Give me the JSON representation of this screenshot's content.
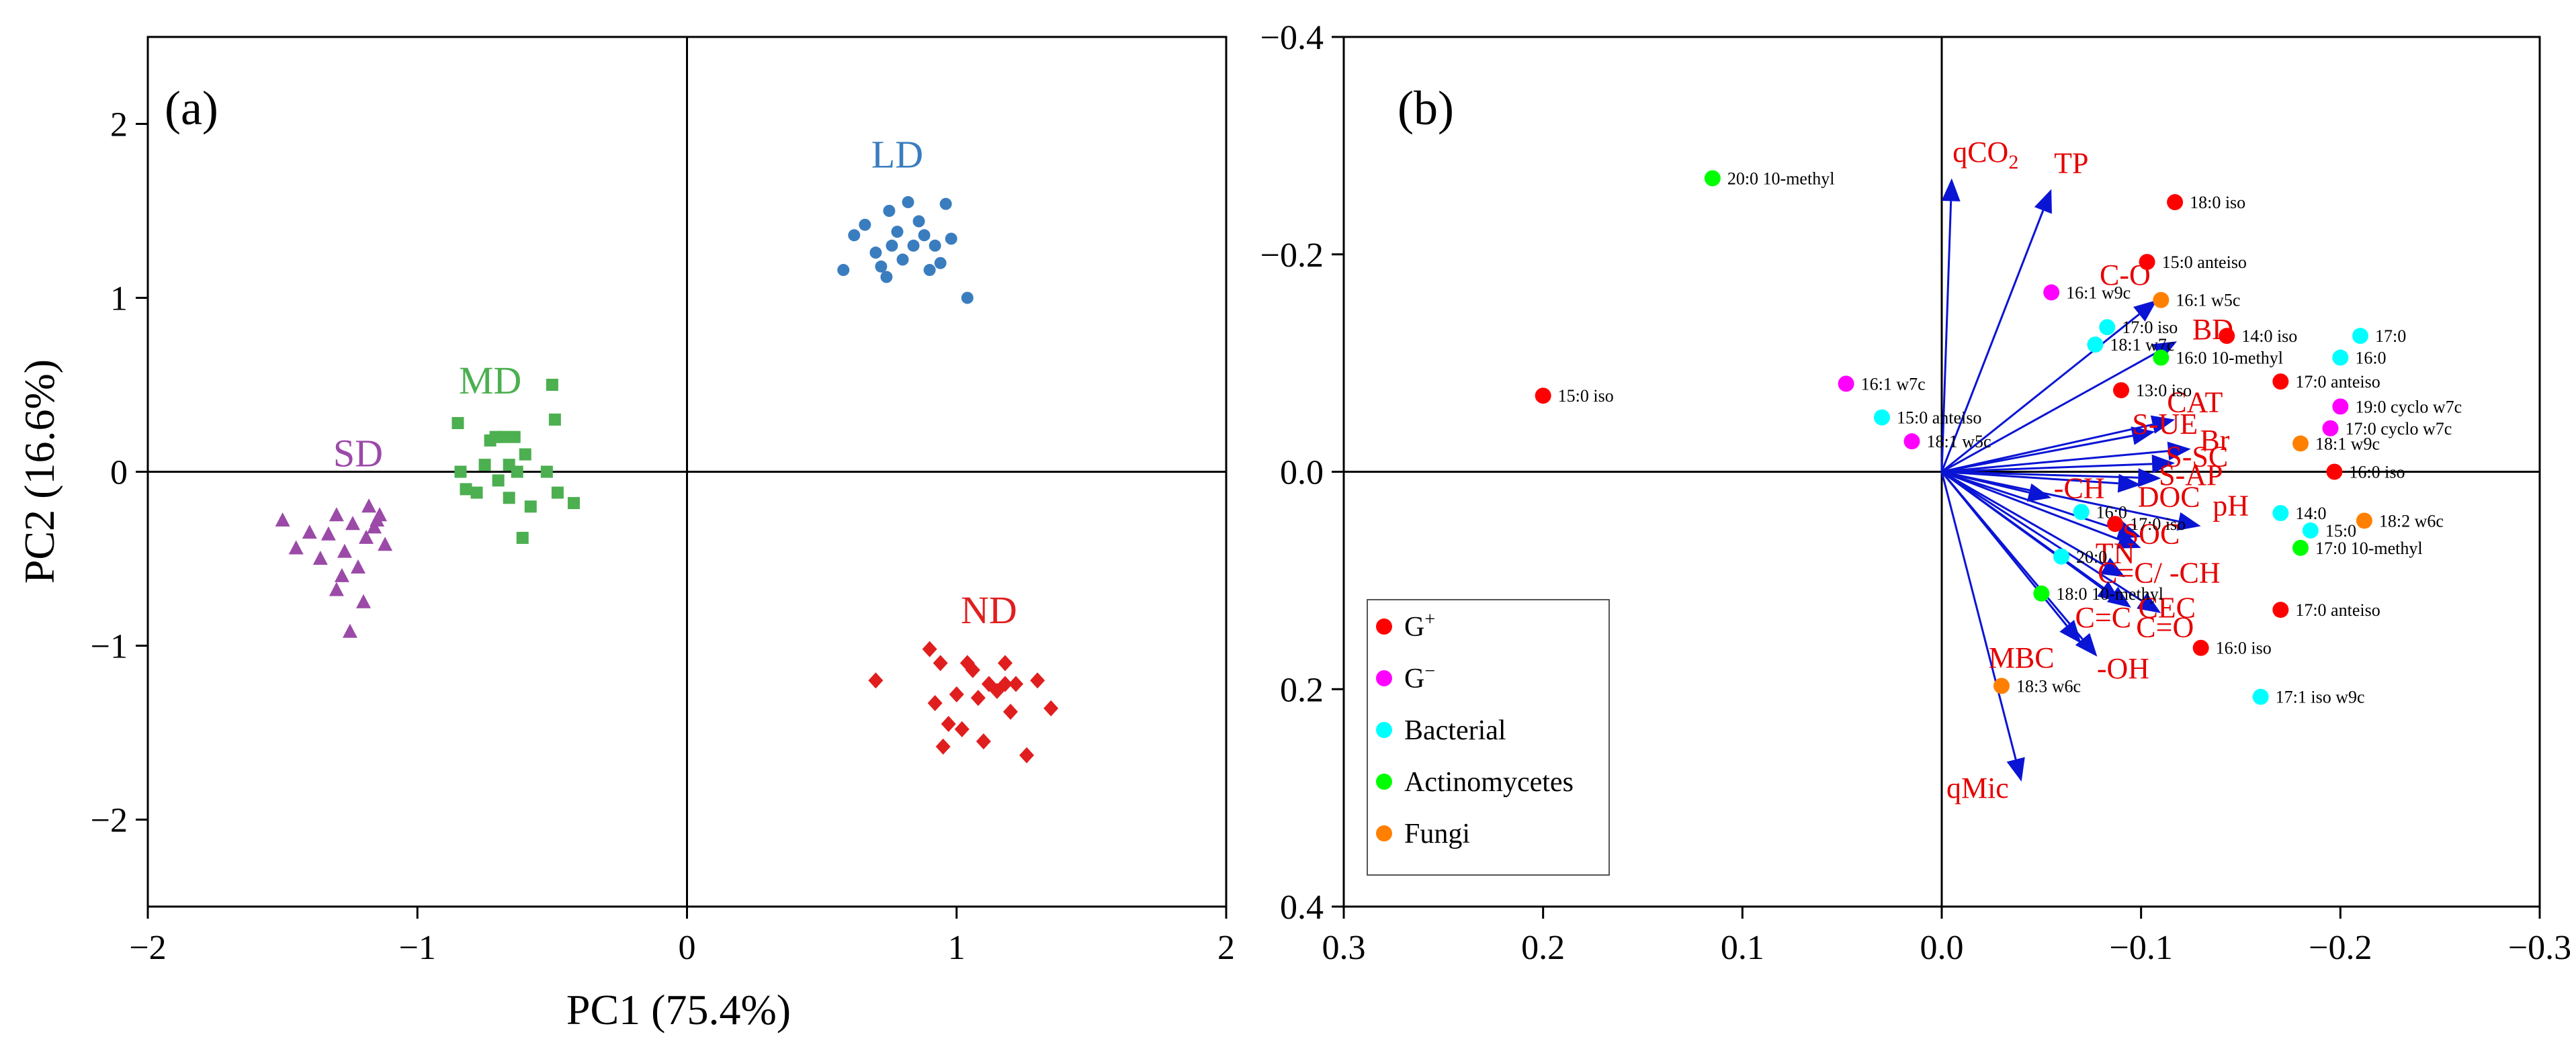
{
  "colors": {
    "LD": "#3a7dbf",
    "MD": "#4caf50",
    "SD": "#9b4aa8",
    "ND": "#e01e1e",
    "vector": "#0a14d4",
    "vector_label": "#e60000",
    "G_pos": "#ff0000",
    "G_neg": "#ff00ff",
    "Bacterial": "#00ffff",
    "Actinomycetes": "#00ff00",
    "Fungi": "#ff8000"
  },
  "chart_data": [
    {
      "panel": "(a)",
      "type": "scatter",
      "xlabel": "PC1 (75.4%)",
      "ylabel": "PC2 (16.6%)",
      "xlim": [
        -2,
        2
      ],
      "ylim": [
        -2.5,
        2.5
      ],
      "xticks": [
        "−2",
        "−1",
        "0",
        "1",
        "2"
      ],
      "yticks": [
        "−2",
        "−1",
        "0",
        "1",
        "2"
      ],
      "series": [
        {
          "name": "LD",
          "marker": "circle",
          "label_pos": [
            0.78,
            1.75
          ],
          "points": [
            [
              0.58,
              1.16
            ],
            [
              0.62,
              1.36
            ],
            [
              0.66,
              1.42
            ],
            [
              0.7,
              1.26
            ],
            [
              0.72,
              1.18
            ],
            [
              0.74,
              1.12
            ],
            [
              0.75,
              1.5
            ],
            [
              0.78,
              1.38
            ],
            [
              0.8,
              1.22
            ],
            [
              0.82,
              1.55
            ],
            [
              0.84,
              1.3
            ],
            [
              0.86,
              1.44
            ],
            [
              0.88,
              1.36
            ],
            [
              0.9,
              1.16
            ],
            [
              0.92,
              1.3
            ],
            [
              0.94,
              1.2
            ],
            [
              0.96,
              1.54
            ],
            [
              0.98,
              1.34
            ],
            [
              1.04,
              1.0
            ],
            [
              0.76,
              1.3
            ]
          ]
        },
        {
          "name": "MD",
          "marker": "square",
          "label_pos": [
            -0.73,
            0.45
          ],
          "points": [
            [
              -0.85,
              0.28
            ],
            [
              -0.84,
              0.0
            ],
            [
              -0.82,
              -0.1
            ],
            [
              -0.78,
              -0.12
            ],
            [
              -0.75,
              0.04
            ],
            [
              -0.73,
              0.18
            ],
            [
              -0.71,
              0.2
            ],
            [
              -0.7,
              -0.05
            ],
            [
              -0.68,
              0.2
            ],
            [
              -0.66,
              -0.15
            ],
            [
              -0.64,
              0.2
            ],
            [
              -0.63,
              0.0
            ],
            [
              -0.61,
              -0.38
            ],
            [
              -0.6,
              0.1
            ],
            [
              -0.58,
              -0.2
            ],
            [
              -0.52,
              0.0
            ],
            [
              -0.5,
              0.5
            ],
            [
              -0.49,
              0.3
            ],
            [
              -0.48,
              -0.12
            ],
            [
              -0.42,
              -0.18
            ],
            [
              -0.66,
              0.04
            ]
          ]
        },
        {
          "name": "SD",
          "marker": "triangle",
          "label_pos": [
            -1.22,
            0.03
          ],
          "points": [
            [
              -1.5,
              -0.28
            ],
            [
              -1.45,
              -0.44
            ],
            [
              -1.4,
              -0.35
            ],
            [
              -1.36,
              -0.5
            ],
            [
              -1.33,
              -0.36
            ],
            [
              -1.3,
              -0.68
            ],
            [
              -1.28,
              -0.6
            ],
            [
              -1.27,
              -0.46
            ],
            [
              -1.25,
              -0.92
            ],
            [
              -1.24,
              -0.3
            ],
            [
              -1.22,
              -0.55
            ],
            [
              -1.2,
              -0.75
            ],
            [
              -1.19,
              -0.38
            ],
            [
              -1.18,
              -0.2
            ],
            [
              -1.16,
              -0.32
            ],
            [
              -1.15,
              -0.28
            ],
            [
              -1.14,
              -0.25
            ],
            [
              -1.12,
              -0.42
            ],
            [
              -1.3,
              -0.25
            ]
          ]
        },
        {
          "name": "ND",
          "marker": "diamond",
          "label_pos": [
            1.12,
            -0.87
          ],
          "points": [
            [
              0.7,
              -1.2
            ],
            [
              0.9,
              -1.02
            ],
            [
              0.92,
              -1.33
            ],
            [
              0.94,
              -1.1
            ],
            [
              0.95,
              -1.58
            ],
            [
              0.97,
              -1.45
            ],
            [
              1.0,
              -1.28
            ],
            [
              1.02,
              -1.48
            ],
            [
              1.04,
              -1.1
            ],
            [
              1.06,
              -1.14
            ],
            [
              1.08,
              -1.3
            ],
            [
              1.1,
              -1.55
            ],
            [
              1.12,
              -1.22
            ],
            [
              1.15,
              -1.26
            ],
            [
              1.18,
              -1.1
            ],
            [
              1.2,
              -1.38
            ],
            [
              1.22,
              -1.22
            ],
            [
              1.26,
              -1.63
            ],
            [
              1.3,
              -1.2
            ],
            [
              1.35,
              -1.36
            ],
            [
              1.18,
              -1.22
            ]
          ]
        }
      ]
    },
    {
      "panel": "(b)",
      "type": "scatter",
      "x_axis": "reversed",
      "y_axis": "reversed",
      "xlim": [
        0.3,
        -0.3
      ],
      "ylim": [
        -0.4,
        0.4
      ],
      "xticks": [
        "0.3",
        "0.2",
        "0.1",
        "0.0",
        "−0.1",
        "−0.2",
        "−0.3"
      ],
      "yticks": [
        "−0.4",
        "−0.2",
        "0.0",
        "0.2",
        "0.4"
      ],
      "vectors": [
        {
          "label": "qCO",
          "sub": "2",
          "end": [
            -0.005,
            -0.27
          ],
          "label_pos": [
            -0.022,
            -0.285
          ]
        },
        {
          "label": "TP",
          "end": [
            -0.055,
            -0.26
          ],
          "label_pos": [
            -0.065,
            -0.275
          ]
        },
        {
          "label": "C-O",
          "end": [
            -0.108,
            -0.158
          ],
          "label_pos": [
            -0.092,
            -0.172
          ]
        },
        {
          "label": "BD",
          "end": [
            -0.118,
            -0.12
          ],
          "label_pos": [
            -0.136,
            -0.122
          ]
        },
        {
          "label": "pH",
          "end": [
            -0.13,
            0.05
          ],
          "label_pos": [
            -0.145,
            0.04
          ]
        },
        {
          "label": "C=O",
          "end": [
            -0.11,
            0.13
          ],
          "label_pos": [
            -0.112,
            0.152
          ]
        },
        {
          "label": "qMic",
          "end": [
            -0.04,
            0.285
          ],
          "label_pos": [
            -0.018,
            0.3
          ]
        },
        {
          "label": "CAT",
          "end": [
            -0.117,
            -0.048
          ],
          "label_pos": [
            -0.127,
            -0.055
          ]
        },
        {
          "label": "S-UE",
          "end": [
            -0.107,
            -0.037
          ],
          "label_pos": [
            -0.112,
            -0.035
          ]
        },
        {
          "label": "Br",
          "end": [
            -0.125,
            -0.021
          ],
          "label_pos": [
            -0.137,
            -0.02
          ]
        },
        {
          "label": "S-SC",
          "end": [
            -0.117,
            -0.008
          ],
          "label_pos": [
            -0.128,
            -0.005
          ]
        },
        {
          "label": "S-AP",
          "end": [
            -0.11,
            0.006
          ],
          "label_pos": [
            -0.125,
            0.012
          ]
        },
        {
          "label": "DOC",
          "end": [
            -0.1,
            0.012
          ],
          "label_pos": [
            -0.114,
            0.032
          ]
        },
        {
          "label": "-CH",
          "end": [
            -0.055,
            0.024
          ],
          "label_pos": [
            -0.069,
            0.024
          ]
        },
        {
          "label": "SOC",
          "end": [
            -0.1,
            0.06
          ],
          "label_pos": [
            -0.105,
            0.066
          ]
        },
        {
          "label": "TN",
          "end": [
            -0.1,
            0.07
          ],
          "label_pos": [
            -0.087,
            0.084
          ]
        },
        {
          "label": "C=C/ -CH",
          "end": [
            -0.092,
            0.097
          ],
          "label_pos": [
            -0.109,
            0.102
          ]
        },
        {
          "label": "CEC",
          "end": [
            -0.095,
            0.125
          ],
          "label_pos": [
            -0.113,
            0.134
          ]
        },
        {
          "label": "C=C",
          "end": [
            -0.09,
            0.12
          ],
          "label_pos": [
            -0.081,
            0.143
          ]
        },
        {
          "label": "MBC",
          "end": [
            -0.07,
            0.158
          ],
          "label_pos": [
            -0.04,
            0.18
          ]
        },
        {
          "label": "-OH",
          "end": [
            -0.078,
            0.17
          ],
          "label_pos": [
            -0.091,
            0.19
          ]
        }
      ],
      "points": [
        {
          "label": "20:0 10-methyl",
          "group": "Actinomycetes",
          "x": 0.115,
          "y": -0.27
        },
        {
          "label": "18:0 iso",
          "group": "G_pos",
          "x": -0.117,
          "y": -0.248
        },
        {
          "label": "15:0 anteiso",
          "group": "G_pos",
          "x": -0.103,
          "y": -0.193
        },
        {
          "label": "16:1 w9c",
          "group": "G_neg",
          "x": -0.055,
          "y": -0.165
        },
        {
          "label": "16:1 w5c",
          "group": "Fungi",
          "x": -0.11,
          "y": -0.158
        },
        {
          "label": "17:0 iso",
          "group": "Bacterial",
          "x": -0.083,
          "y": -0.133
        },
        {
          "label": "14:0 iso",
          "group": "G_pos",
          "x": -0.143,
          "y": -0.125
        },
        {
          "label": "17:0",
          "group": "Bacterial",
          "x": -0.21,
          "y": -0.125
        },
        {
          "label": "18:1 w7c",
          "group": "Bacterial",
          "x": -0.077,
          "y": -0.117
        },
        {
          "label": "16:0 10-methyl",
          "group": "Actinomycetes",
          "x": -0.11,
          "y": -0.105
        },
        {
          "label": "16:0",
          "group": "Bacterial",
          "x": -0.2,
          "y": -0.105
        },
        {
          "label": "17:0 anteiso",
          "group": "G_pos",
          "x": -0.17,
          "y": -0.083
        },
        {
          "label": "16:1 w7c",
          "group": "G_neg",
          "x": 0.048,
          "y": -0.081
        },
        {
          "label": "13:0 iso",
          "group": "G_pos",
          "x": -0.09,
          "y": -0.075
        },
        {
          "label": "19:0 cyclo w7c",
          "group": "G_neg",
          "x": -0.2,
          "y": -0.06
        },
        {
          "label": "15:0 anteiso",
          "group": "Bacterial",
          "x": 0.03,
          "y": -0.05
        },
        {
          "label": "17:0 cyclo w7c",
          "group": "G_neg",
          "x": -0.195,
          "y": -0.04
        },
        {
          "label": "18:1 w5c",
          "group": "G_neg",
          "x": 0.015,
          "y": -0.028
        },
        {
          "label": "18:1 w9c",
          "group": "Fungi",
          "x": -0.18,
          "y": -0.026
        },
        {
          "label": "15:0 iso",
          "group": "G_pos",
          "x": 0.2,
          "y": -0.07
        },
        {
          "label": "16:0 iso",
          "group": "G_pos",
          "x": -0.197,
          "y": 0.0
        },
        {
          "label": "14:0",
          "group": "Bacterial",
          "x": -0.17,
          "y": 0.038
        },
        {
          "label": "18:2 w6c",
          "group": "Fungi",
          "x": -0.212,
          "y": 0.045
        },
        {
          "label": "16:0",
          "group": "Bacterial",
          "x": -0.07,
          "y": 0.037
        },
        {
          "label": "17:0 iso",
          "group": "G_pos",
          "x": -0.087,
          "y": 0.048
        },
        {
          "label": "15:0",
          "group": "Bacterial",
          "x": -0.185,
          "y": 0.054
        },
        {
          "label": "20:0",
          "group": "Bacterial",
          "x": -0.06,
          "y": 0.078
        },
        {
          "label": "17:0 10-methyl",
          "group": "Actinomycetes",
          "x": -0.18,
          "y": 0.07
        },
        {
          "label": "18:0 10-methyl",
          "group": "Actinomycetes",
          "x": -0.05,
          "y": 0.112
        },
        {
          "label": "17:0 anteiso",
          "group": "G_pos",
          "x": -0.17,
          "y": 0.127
        },
        {
          "label": "16:0 iso",
          "group": "G_pos",
          "x": -0.13,
          "y": 0.162
        },
        {
          "label": "17:1 iso w9c",
          "group": "Bacterial",
          "x": -0.16,
          "y": 0.207
        },
        {
          "label": "18:3 w6c",
          "group": "Fungi",
          "x": -0.03,
          "y": 0.197
        }
      ],
      "legend": [
        {
          "group": "G_pos",
          "base": "G",
          "sup": "+"
        },
        {
          "group": "G_neg",
          "base": "G",
          "sup": "−"
        },
        {
          "group": "Bacterial",
          "base": "Bacterial"
        },
        {
          "group": "Actinomycetes",
          "base": "Actinomycetes"
        },
        {
          "group": "Fungi",
          "base": "Fungi"
        }
      ]
    }
  ]
}
